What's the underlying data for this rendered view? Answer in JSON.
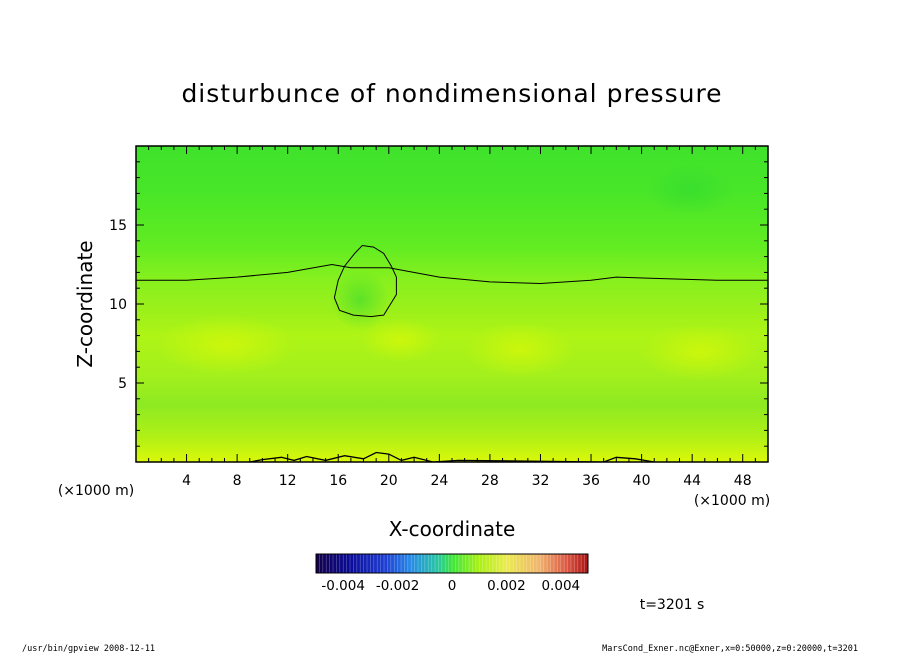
{
  "chart_data": {
    "type": "heatmap",
    "title": "disturbunce of nondimensional pressure",
    "xlabel": "X-coordinate",
    "ylabel": "Z-coordinate",
    "x_unit": "(×1000 m)",
    "y_unit": "(×1000 m)",
    "xlim": [
      0,
      50
    ],
    "ylim": [
      0,
      20
    ],
    "x_ticks": [
      4,
      8,
      12,
      16,
      20,
      24,
      28,
      32,
      36,
      40,
      44,
      48
    ],
    "y_ticks": [
      5,
      10,
      15
    ],
    "colorbar": {
      "min": -0.005,
      "max": 0.005,
      "ticks": [
        -0.004,
        -0.002,
        0,
        0.002,
        0.004
      ],
      "tick_labels": [
        "-0.004",
        "-0.002",
        "0",
        "0.002",
        "0.004"
      ]
    },
    "value_range_approx": [
      0.0,
      0.003
    ],
    "zero_contour_upper": [
      [
        0,
        11.5
      ],
      [
        4,
        11.5
      ],
      [
        8,
        11.7
      ],
      [
        12,
        12.0
      ],
      [
        15.5,
        12.5
      ],
      [
        17,
        12.3
      ],
      [
        20,
        12.3
      ],
      [
        24,
        11.7
      ],
      [
        28,
        11.4
      ],
      [
        32,
        11.3
      ],
      [
        36,
        11.5
      ],
      [
        38,
        11.7
      ],
      [
        42,
        11.6
      ],
      [
        46,
        11.5
      ],
      [
        50,
        11.5
      ]
    ],
    "zero_contour_cell": [
      [
        17.3,
        13.2
      ],
      [
        17.9,
        13.7
      ],
      [
        18.8,
        13.6
      ],
      [
        19.6,
        13.2
      ],
      [
        20.2,
        12.4
      ],
      [
        20.6,
        11.7
      ],
      [
        20.6,
        10.6
      ],
      [
        19.6,
        9.3
      ],
      [
        18.6,
        9.2
      ],
      [
        17.2,
        9.3
      ],
      [
        16.1,
        9.6
      ],
      [
        15.7,
        10.4
      ],
      [
        16.0,
        11.5
      ],
      [
        16.5,
        12.4
      ],
      [
        17.3,
        13.2
      ]
    ],
    "zero_contour_surface": [
      [
        9,
        0.0
      ],
      [
        10,
        0.15
      ],
      [
        11.5,
        0.3
      ],
      [
        12.5,
        0.1
      ],
      [
        13.5,
        0.35
      ],
      [
        15,
        0.1
      ],
      [
        16.5,
        0.4
      ],
      [
        18,
        0.2
      ],
      [
        19,
        0.6
      ],
      [
        20,
        0.5
      ],
      [
        21,
        0.1
      ],
      [
        22,
        0.3
      ],
      [
        23.5,
        0.0
      ],
      [
        25.5,
        0.1
      ],
      [
        37,
        0.0
      ],
      [
        38,
        0.3
      ],
      [
        39.5,
        0.2
      ],
      [
        41,
        0.0
      ]
    ],
    "time_label": "t=3201 s"
  },
  "footer": {
    "left": "/usr/bin/gpview   2008-12-11",
    "right": "MarsCond_Exner.nc@Exner,x=0:50000,z=0:20000,t=3201"
  },
  "colors": {
    "background_field": "#4cec24",
    "frame": "#000000"
  }
}
